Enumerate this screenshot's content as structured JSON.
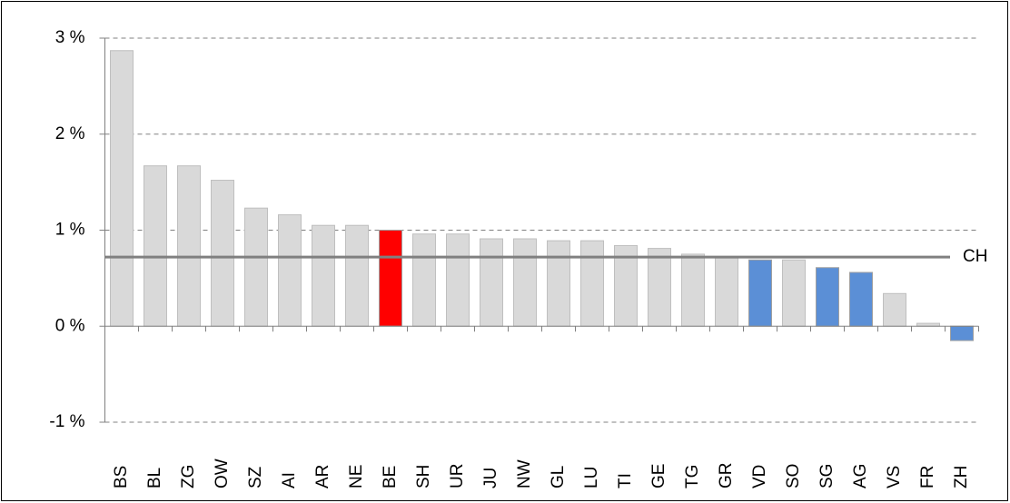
{
  "chart_data": {
    "type": "bar",
    "categories": [
      "BS",
      "BL",
      "ZG",
      "OW",
      "SZ",
      "AI",
      "AR",
      "NE",
      "BE",
      "SH",
      "UR",
      "JU",
      "NW",
      "GL",
      "LU",
      "TI",
      "GE",
      "TG",
      "GR",
      "VD",
      "SO",
      "SG",
      "AG",
      "VS",
      "FR",
      "ZH"
    ],
    "values": [
      2.87,
      1.67,
      1.67,
      1.52,
      1.23,
      1.16,
      1.05,
      1.05,
      1.0,
      0.96,
      0.96,
      0.91,
      0.91,
      0.89,
      0.89,
      0.84,
      0.81,
      0.75,
      0.72,
      0.69,
      0.69,
      0.61,
      0.56,
      0.34,
      0.03,
      -0.15
    ],
    "colors": [
      "#d9d9d9",
      "#d9d9d9",
      "#d9d9d9",
      "#d9d9d9",
      "#d9d9d9",
      "#d9d9d9",
      "#d9d9d9",
      "#d9d9d9",
      "#ff0000",
      "#d9d9d9",
      "#d9d9d9",
      "#d9d9d9",
      "#d9d9d9",
      "#d9d9d9",
      "#d9d9d9",
      "#d9d9d9",
      "#d9d9d9",
      "#d9d9d9",
      "#d9d9d9",
      "#5b8fd6",
      "#d9d9d9",
      "#5b8fd6",
      "#5b8fd6",
      "#d9d9d9",
      "#d9d9d9",
      "#5b8fd6"
    ],
    "ylim": [
      -1,
      3
    ],
    "yticks": [
      {
        "value": -1,
        "label": "-1 %"
      },
      {
        "value": 0,
        "label": "0 %"
      },
      {
        "value": 1,
        "label": "1 %"
      },
      {
        "value": 2,
        "label": "2 %"
      },
      {
        "value": 3,
        "label": "3 %"
      }
    ],
    "grid": true,
    "reference_line": {
      "label": "CH",
      "value": 0.72,
      "color": "#808080"
    }
  }
}
